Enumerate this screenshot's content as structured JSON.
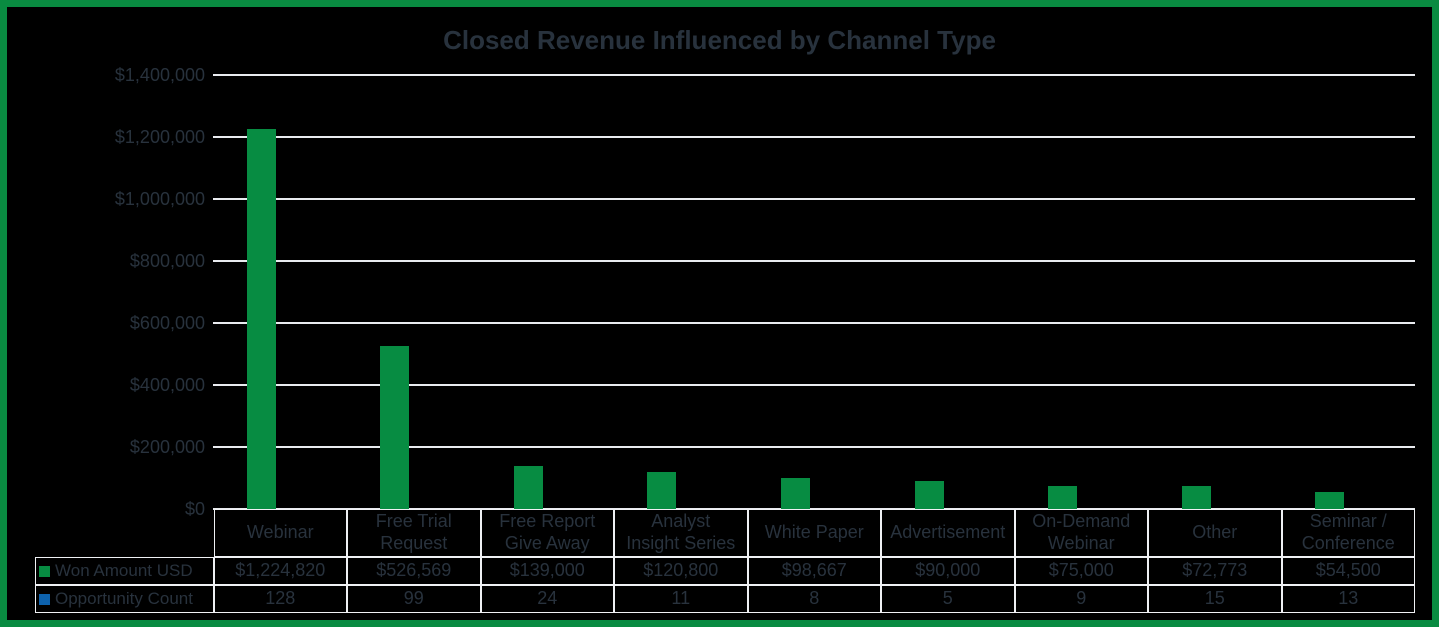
{
  "chart_data": {
    "type": "bar",
    "title": "Closed Revenue Influenced by Channel Type",
    "categories": [
      "Webinar",
      "Free Trial Request",
      "Free Report Give Away",
      "Analyst Insight Series",
      "White Paper",
      "Advertisement",
      "On-Demand Webinar",
      "Other",
      "Seminar / Conference"
    ],
    "series": [
      {
        "name": "Won Amount USD",
        "color": "#078C42",
        "values": [
          1224820,
          526569,
          139000,
          120800,
          98667,
          90000,
          75000,
          72773,
          54500
        ]
      },
      {
        "name": "Opportunity Count",
        "color": "#0D62AD",
        "values": [
          128,
          99,
          24,
          11,
          8,
          5,
          9,
          15,
          13
        ]
      }
    ],
    "ylabel": "",
    "xlabel": "",
    "ylim": [
      0,
      1400000
    ],
    "y_tick_step": 200000,
    "grid": true,
    "legend_position": "left-of-table-rows"
  },
  "y_axis": {
    "tick_labels": [
      "$1,400,000",
      "$1,200,000",
      "$1,000,000",
      "$800,000",
      "$600,000",
      "$400,000",
      "$200,000",
      "$0"
    ]
  },
  "table": {
    "column_headers": [
      "Webinar",
      "Free Trial\nRequest",
      "Free Report\nGive Away",
      "Analyst\nInsight Series",
      "White Paper",
      "Advertisement",
      "On-Demand\nWebinar",
      "Other",
      "Seminar /\nConference"
    ],
    "rows": [
      {
        "label": "Won Amount USD",
        "swatch_color": "#078C42",
        "cells": [
          "$1,224,820",
          "$526,569",
          "$139,000",
          "$120,800",
          "$98,667",
          "$90,000",
          "$75,000",
          "$72,773",
          "$54,500"
        ]
      },
      {
        "label": "Opportunity Count",
        "swatch_color": "#0D62AD",
        "cells": [
          "128",
          "99",
          "24",
          "11",
          "8",
          "5",
          "9",
          "15",
          "13"
        ]
      }
    ]
  },
  "colors": {
    "background": "#000000",
    "frame_green": "#098B41",
    "bar_green": "#078C42",
    "count_blue": "#0D62AD",
    "text": "#28323D",
    "gridline": "#E9EBEF",
    "table_border": "#EFF1F4"
  }
}
